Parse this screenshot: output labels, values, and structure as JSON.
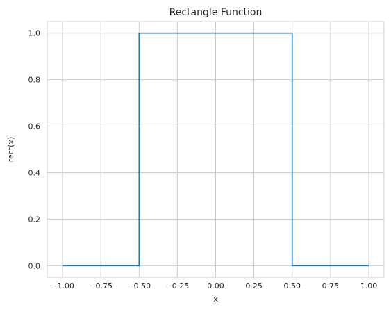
{
  "chart_data": {
    "type": "line",
    "title": "Rectangle Function",
    "xlabel": "x",
    "ylabel": "rect(x)",
    "xlim": [
      -1.1,
      1.1
    ],
    "ylim": [
      -0.05,
      1.05
    ],
    "xticks": [
      -1.0,
      -0.75,
      -0.5,
      -0.25,
      0.0,
      0.25,
      0.5,
      0.75,
      1.0
    ],
    "xtick_labels": [
      "−1.00",
      "−0.75",
      "−0.50",
      "−0.25",
      "0.00",
      "0.25",
      "0.50",
      "0.75",
      "1.00"
    ],
    "yticks": [
      0.0,
      0.2,
      0.4,
      0.6,
      0.8,
      1.0
    ],
    "ytick_labels": [
      "0.0",
      "0.2",
      "0.4",
      "0.6",
      "0.8",
      "1.0"
    ],
    "grid": true,
    "series": [
      {
        "color": "#1f77b4",
        "x": [
          -1.0,
          -0.5,
          -0.5,
          0.5,
          0.5,
          1.0
        ],
        "y": [
          0.0,
          0.0,
          1.0,
          1.0,
          0.0,
          0.0
        ]
      }
    ]
  }
}
